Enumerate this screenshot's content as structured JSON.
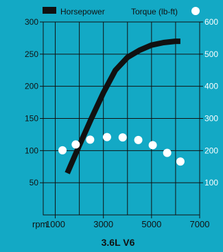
{
  "colors": {
    "background": "#13a9c5",
    "plot_area": "#13a9c5",
    "grid": "#111111",
    "horsepower": "#111111",
    "torque": "#ffffff",
    "text": "#111111",
    "right_axis_text": "#ffffff"
  },
  "chart_data": {
    "type": "line",
    "title": "3.6L V6",
    "x": {
      "label": "rpm",
      "range": [
        500,
        7000
      ],
      "tick_values": [
        1000,
        3000,
        5000,
        7000
      ],
      "tick_labels": [
        "1000",
        "3000",
        "5000",
        "7000"
      ],
      "grid_values": [
        1000,
        2000,
        3000,
        4000,
        5000,
        6000,
        7000
      ]
    },
    "y_left": {
      "range": [
        0,
        300
      ],
      "tick_values": [
        50,
        100,
        150,
        200,
        250,
        300
      ],
      "tick_labels": [
        "50",
        "100",
        "150",
        "200",
        "250",
        "300"
      ]
    },
    "y_right": {
      "range": [
        0,
        600
      ],
      "tick_values": [
        100,
        200,
        300,
        400,
        500,
        600
      ],
      "tick_labels": [
        "100",
        "200",
        "300",
        "400",
        "500",
        "600"
      ]
    },
    "series": [
      {
        "name": "Horsepower",
        "axis": "left",
        "style": "thick-line",
        "x": [
          1500,
          2000,
          2500,
          3000,
          3500,
          4000,
          4500,
          5000,
          5500,
          6000,
          6200
        ],
        "y": [
          65,
          108,
          150,
          190,
          225,
          245,
          256,
          264,
          268,
          270,
          270
        ]
      },
      {
        "name": "Torque (lb-ft)",
        "axis": "right",
        "style": "dots",
        "x": [
          1300,
          1850,
          2450,
          3150,
          3800,
          4450,
          5050,
          5650,
          6200
        ],
        "y": [
          201,
          219,
          234,
          242,
          241,
          233,
          217,
          193,
          166
        ]
      }
    ],
    "legend": {
      "placement": "top"
    },
    "grid": true
  }
}
